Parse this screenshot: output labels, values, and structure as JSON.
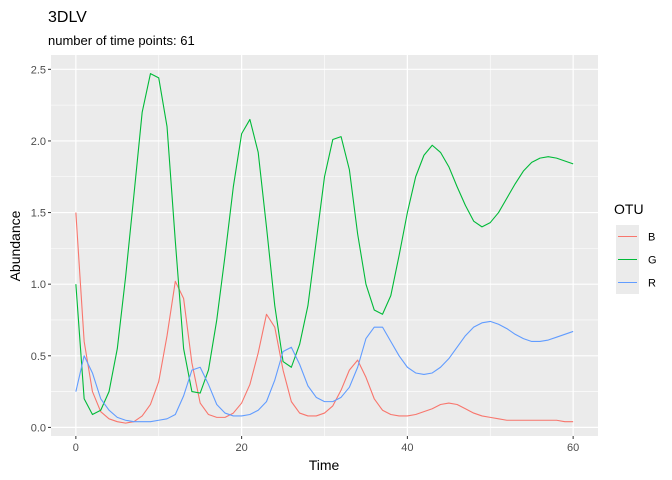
{
  "chart_data": {
    "type": "line",
    "title": "3DLV",
    "subtitle": "number of time points: 61",
    "xlabel": "Time",
    "ylabel": "Abundance",
    "xlim": [
      -3,
      63
    ],
    "ylim": [
      -0.06,
      2.6
    ],
    "x_ticks": [
      0,
      20,
      40,
      60
    ],
    "y_ticks": [
      0.0,
      0.5,
      1.0,
      1.5,
      2.0,
      2.5
    ],
    "x_tick_labels": [
      "0",
      "20",
      "40",
      "60"
    ],
    "y_tick_labels": [
      "0.0",
      "0.5",
      "1.0",
      "1.5",
      "2.0",
      "2.5"
    ],
    "grid": true,
    "panel_background": "#ebebeb",
    "legend": {
      "title": "OTU",
      "position": "right"
    },
    "x": [
      0,
      1,
      2,
      3,
      4,
      5,
      6,
      7,
      8,
      9,
      10,
      11,
      12,
      13,
      14,
      15,
      16,
      17,
      18,
      19,
      20,
      21,
      22,
      23,
      24,
      25,
      26,
      27,
      28,
      29,
      30,
      31,
      32,
      33,
      34,
      35,
      36,
      37,
      38,
      39,
      40,
      41,
      42,
      43,
      44,
      45,
      46,
      47,
      48,
      49,
      50,
      51,
      52,
      53,
      54,
      55,
      56,
      57,
      58,
      59,
      60
    ],
    "series": [
      {
        "name": "B",
        "color": "#F8766D",
        "values": [
          1.5,
          0.6,
          0.25,
          0.11,
          0.06,
          0.04,
          0.03,
          0.04,
          0.08,
          0.16,
          0.32,
          0.64,
          1.02,
          0.9,
          0.45,
          0.17,
          0.09,
          0.07,
          0.07,
          0.1,
          0.17,
          0.3,
          0.52,
          0.79,
          0.7,
          0.4,
          0.18,
          0.1,
          0.08,
          0.08,
          0.1,
          0.15,
          0.26,
          0.4,
          0.47,
          0.35,
          0.2,
          0.12,
          0.09,
          0.08,
          0.08,
          0.09,
          0.11,
          0.13,
          0.16,
          0.17,
          0.16,
          0.13,
          0.1,
          0.08,
          0.07,
          0.06,
          0.05,
          0.05,
          0.05,
          0.05,
          0.05,
          0.05,
          0.05,
          0.04,
          0.04
        ]
      },
      {
        "name": "G",
        "color": "#00BA38",
        "values": [
          1.0,
          0.2,
          0.09,
          0.12,
          0.25,
          0.55,
          1.05,
          1.62,
          2.2,
          2.47,
          2.44,
          2.1,
          1.3,
          0.55,
          0.25,
          0.24,
          0.4,
          0.75,
          1.2,
          1.68,
          2.05,
          2.15,
          1.92,
          1.4,
          0.85,
          0.46,
          0.42,
          0.58,
          0.85,
          1.3,
          1.75,
          2.01,
          2.03,
          1.8,
          1.35,
          1.0,
          0.82,
          0.79,
          0.92,
          1.2,
          1.5,
          1.75,
          1.9,
          1.97,
          1.92,
          1.82,
          1.68,
          1.55,
          1.44,
          1.4,
          1.43,
          1.5,
          1.6,
          1.7,
          1.79,
          1.85,
          1.88,
          1.89,
          1.88,
          1.86,
          1.84
        ]
      },
      {
        "name": "R",
        "color": "#619CFF",
        "values": [
          0.25,
          0.5,
          0.38,
          0.2,
          0.12,
          0.07,
          0.05,
          0.04,
          0.04,
          0.04,
          0.05,
          0.06,
          0.09,
          0.22,
          0.4,
          0.42,
          0.3,
          0.16,
          0.1,
          0.08,
          0.08,
          0.09,
          0.12,
          0.18,
          0.33,
          0.53,
          0.56,
          0.44,
          0.29,
          0.21,
          0.18,
          0.18,
          0.21,
          0.28,
          0.42,
          0.62,
          0.7,
          0.7,
          0.6,
          0.5,
          0.42,
          0.38,
          0.37,
          0.38,
          0.42,
          0.48,
          0.56,
          0.64,
          0.7,
          0.73,
          0.74,
          0.72,
          0.69,
          0.65,
          0.62,
          0.6,
          0.6,
          0.61,
          0.63,
          0.65,
          0.67
        ]
      }
    ]
  }
}
